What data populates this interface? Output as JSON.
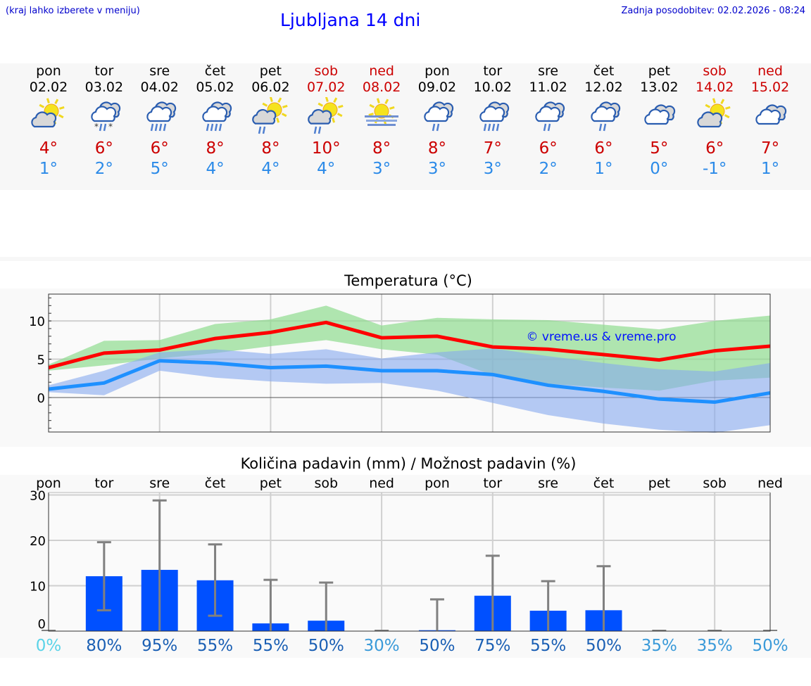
{
  "header": {
    "menu_hint": "(kraj lahko izberete v meniju)",
    "title": "Ljubljana 14 dni",
    "updated": "Zadnja posodobitev: 02.02.2026 - 08:24"
  },
  "colors": {
    "weekday": "#000000",
    "weekend": "#cc0000",
    "max": "#cc0000",
    "min": "#2b8ae8",
    "max_line": "#ff0000",
    "min_line": "#1e90ff",
    "max_band": "#8fdc8f",
    "min_band": "#86a8ee",
    "bar": "#0050ff",
    "error": "#808080"
  },
  "days": [
    {
      "name": "pon",
      "date": "02.02",
      "weekend": false,
      "icon": "partly-sunny-icon",
      "max": "4°",
      "min": "1°"
    },
    {
      "name": "tor",
      "date": "03.02",
      "weekend": false,
      "icon": "cloud-sleet-icon",
      "max": "6°",
      "min": "2°"
    },
    {
      "name": "sre",
      "date": "04.02",
      "weekend": false,
      "icon": "cloud-rain-icon",
      "max": "6°",
      "min": "5°"
    },
    {
      "name": "čet",
      "date": "05.02",
      "weekend": false,
      "icon": "cloud-rain-icon",
      "max": "8°",
      "min": "4°"
    },
    {
      "name": "pet",
      "date": "06.02",
      "weekend": false,
      "icon": "sun-cloud-rain-icon",
      "max": "8°",
      "min": "4°"
    },
    {
      "name": "sob",
      "date": "07.02",
      "weekend": true,
      "icon": "sun-cloud-rain-icon",
      "max": "10°",
      "min": "4°"
    },
    {
      "name": "ned",
      "date": "08.02",
      "weekend": true,
      "icon": "sun-fog-icon",
      "max": "8°",
      "min": "3°"
    },
    {
      "name": "pon",
      "date": "09.02",
      "weekend": false,
      "icon": "cloud-light-rain-icon",
      "max": "8°",
      "min": "3°"
    },
    {
      "name": "tor",
      "date": "10.02",
      "weekend": false,
      "icon": "cloud-rain-icon",
      "max": "7°",
      "min": "3°"
    },
    {
      "name": "sre",
      "date": "11.02",
      "weekend": false,
      "icon": "cloud-light-rain-icon",
      "max": "6°",
      "min": "2°"
    },
    {
      "name": "čet",
      "date": "12.02",
      "weekend": false,
      "icon": "cloud-light-rain-icon",
      "max": "6°",
      "min": "1°"
    },
    {
      "name": "pet",
      "date": "13.02",
      "weekend": false,
      "icon": "cloudy-icon",
      "max": "5°",
      "min": "0°"
    },
    {
      "name": "sob",
      "date": "14.02",
      "weekend": true,
      "icon": "partly-sunny-icon",
      "max": "6°",
      "min": "-1°"
    },
    {
      "name": "ned",
      "date": "15.02",
      "weekend": true,
      "icon": "cloudy-icon",
      "max": "7°",
      "min": "1°"
    }
  ],
  "chart_data": [
    {
      "type": "line",
      "title": "Temperatura (°C)",
      "x": [
        "02.02",
        "03.02",
        "04.02",
        "05.02",
        "06.02",
        "07.02",
        "08.02",
        "09.02",
        "10.02",
        "11.02",
        "12.02",
        "13.02",
        "14.02",
        "15.02"
      ],
      "ylim": [
        -4.5,
        13.5
      ],
      "yticks": [
        0,
        5,
        10
      ],
      "grid": true,
      "watermark": "© vreme.us & vreme.pro",
      "series": [
        {
          "key": "max",
          "values": [
            3.9,
            5.8,
            6.2,
            7.7,
            8.5,
            9.8,
            7.8,
            8.0,
            6.6,
            6.3,
            5.6,
            4.9,
            6.1,
            6.7
          ],
          "band_upper": [
            4.3,
            7.4,
            7.5,
            9.6,
            10.2,
            12.0,
            9.4,
            10.4,
            10.2,
            10.1,
            9.5,
            8.9,
            10.0,
            10.7
          ],
          "band_lower": [
            3.5,
            4.2,
            5.1,
            5.8,
            6.7,
            7.5,
            6.3,
            5.6,
            2.9,
            1.8,
            1.3,
            0.9,
            2.2,
            2.6
          ]
        },
        {
          "key": "min",
          "values": [
            1.1,
            1.9,
            4.8,
            4.5,
            3.9,
            4.1,
            3.5,
            3.5,
            3.0,
            1.6,
            0.8,
            -0.2,
            -0.6,
            0.6
          ],
          "band_upper": [
            1.6,
            3.5,
            5.9,
            6.3,
            5.7,
            6.3,
            5.1,
            5.9,
            6.4,
            5.4,
            4.5,
            3.7,
            3.4,
            4.5
          ],
          "band_lower": [
            0.7,
            0.3,
            3.5,
            2.6,
            2.1,
            1.8,
            1.9,
            0.9,
            -0.7,
            -2.3,
            -3.4,
            -4.2,
            -4.6,
            -3.6
          ]
        }
      ]
    },
    {
      "type": "bar",
      "title": "Količina padavin (mm) / Možnost padavin (%)",
      "categories": [
        "pon",
        "tor",
        "sre",
        "čet",
        "pet",
        "sob",
        "ned",
        "pon",
        "tor",
        "sre",
        "čet",
        "pet",
        "sob",
        "ned"
      ],
      "values": [
        0,
        12.1,
        13.5,
        11.2,
        1.7,
        2.3,
        0,
        0.2,
        7.8,
        4.5,
        4.6,
        0,
        0,
        0
      ],
      "error_low": [
        0,
        4.6,
        0,
        3.4,
        0,
        0,
        0,
        0,
        0,
        0,
        0,
        0,
        0,
        0
      ],
      "error_high": [
        0,
        19.6,
        28.8,
        19.1,
        11.3,
        10.7,
        0,
        7.0,
        16.6,
        11.0,
        14.3,
        0,
        0,
        0
      ],
      "ylim": [
        -1.5,
        30.5
      ],
      "yticks": [
        0,
        10,
        20,
        30
      ],
      "grid": true,
      "probability": [
        {
          "label": "0%",
          "color": "#5ad3e8"
        },
        {
          "label": "80%",
          "color": "#1a5fb4"
        },
        {
          "label": "95%",
          "color": "#1a5fb4"
        },
        {
          "label": "55%",
          "color": "#1a5fb4"
        },
        {
          "label": "55%",
          "color": "#1a5fb4"
        },
        {
          "label": "50%",
          "color": "#1a5fb4"
        },
        {
          "label": "30%",
          "color": "#3a9ad9"
        },
        {
          "label": "50%",
          "color": "#1a5fb4"
        },
        {
          "label": "75%",
          "color": "#1a5fb4"
        },
        {
          "label": "55%",
          "color": "#1a5fb4"
        },
        {
          "label": "50%",
          "color": "#1a5fb4"
        },
        {
          "label": "35%",
          "color": "#3a9ad9"
        },
        {
          "label": "35%",
          "color": "#3a9ad9"
        },
        {
          "label": "50%",
          "color": "#3a9ad9"
        }
      ]
    }
  ]
}
